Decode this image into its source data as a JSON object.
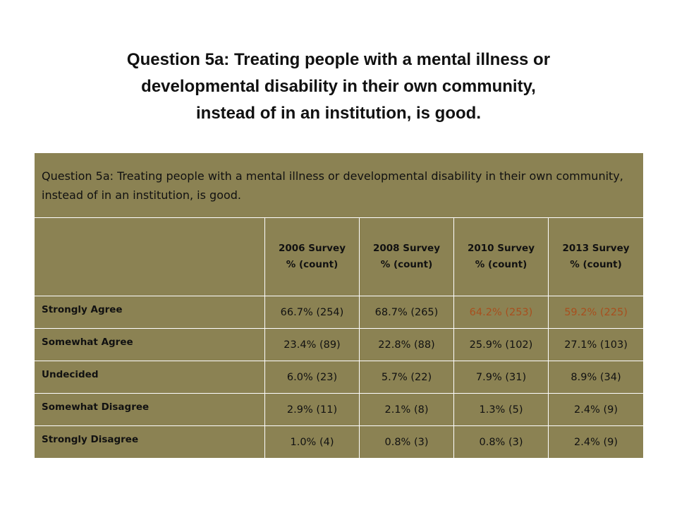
{
  "slide": {
    "title_lines": [
      "Question 5a:  Treating people with a mental illness or",
      "developmental disability in their own community,",
      "instead of in an institution, is good."
    ]
  },
  "table": {
    "caption": "Question 5a:  Treating people with a mental illness or developmental disability in their own community, instead of in an institution, is good.",
    "columns": [
      {
        "line1": "2006 Survey",
        "line2": "% (count)"
      },
      {
        "line1": "2008 Survey",
        "line2": "% (count)"
      },
      {
        "line1": "2010 Survey",
        "line2": "% (count)"
      },
      {
        "line1": "2013 Survey",
        "line2": "% (count)"
      }
    ],
    "rows": [
      {
        "label": "Strongly Agree",
        "values": [
          "66.7% (254)",
          "68.7% (265)",
          "64.2% (253)",
          "59.2% (225)"
        ]
      },
      {
        "label": "Somewhat Agree",
        "values": [
          "23.4% (89)",
          "22.8% (88)",
          "25.9% (102)",
          "27.1% (103)"
        ]
      },
      {
        "label": "Undecided",
        "values": [
          "6.0% (23)",
          "5.7% (22)",
          "7.9% (31)",
          "8.9% (34)"
        ]
      },
      {
        "label": "Somewhat Disagree",
        "values": [
          "2.9% (11)",
          "2.1% (8)",
          "1.3% (5)",
          "2.4% (9)"
        ]
      },
      {
        "label": "Strongly Disagree",
        "values": [
          "1.0% (4)",
          "0.8% (3)",
          "0.8% (3)",
          "2.4% (9)"
        ]
      }
    ]
  },
  "colors": {
    "table_background": "#8b8253",
    "grid_lines": "#ffffff",
    "highlight_text": "#a84f1e",
    "text": "#111111"
  }
}
